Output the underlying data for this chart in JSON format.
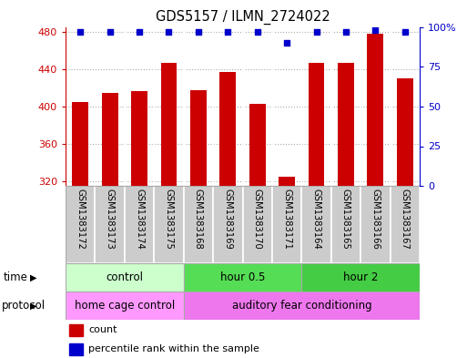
{
  "title": "GDS5157 / ILMN_2724022",
  "samples": [
    "GSM1383172",
    "GSM1383173",
    "GSM1383174",
    "GSM1383175",
    "GSM1383168",
    "GSM1383169",
    "GSM1383170",
    "GSM1383171",
    "GSM1383164",
    "GSM1383165",
    "GSM1383166",
    "GSM1383167"
  ],
  "counts": [
    405,
    415,
    417,
    447,
    418,
    437,
    403,
    325,
    447,
    447,
    478,
    430
  ],
  "percentiles": [
    97,
    97,
    97,
    97,
    97,
    97,
    97,
    90,
    97,
    97,
    98,
    97
  ],
  "ylim_left": [
    315,
    485
  ],
  "ylim_right": [
    0,
    100
  ],
  "yticks_left": [
    320,
    360,
    400,
    440,
    480
  ],
  "yticks_right": [
    0,
    25,
    50,
    75,
    100
  ],
  "yticks_right_labels": [
    "0",
    "25",
    "50",
    "75",
    "100%"
  ],
  "bar_color": "#cc0000",
  "dot_color": "#0000cc",
  "time_groups": [
    {
      "label": "control",
      "start": 0,
      "end": 4,
      "color": "#ccffcc"
    },
    {
      "label": "hour 0.5",
      "start": 4,
      "end": 8,
      "color": "#55dd55"
    },
    {
      "label": "hour 2",
      "start": 8,
      "end": 12,
      "color": "#44cc44"
    }
  ],
  "protocol_groups": [
    {
      "label": "home cage control",
      "start": 0,
      "end": 4,
      "color": "#ff99ff"
    },
    {
      "label": "auditory fear conditioning",
      "start": 4,
      "end": 12,
      "color": "#ee77ee"
    }
  ],
  "time_label": "time",
  "protocol_label": "protocol",
  "legend_count": "count",
  "legend_pct": "percentile rank within the sample",
  "background_color": "#ffffff",
  "grid_color": "#888888",
  "tick_label_color_left": "#cc0000",
  "tick_label_color_right": "#0000cc",
  "xlabel_bg": "#cccccc",
  "xlabel_divider": "#ffffff",
  "cell_border": "#aaaaaa"
}
